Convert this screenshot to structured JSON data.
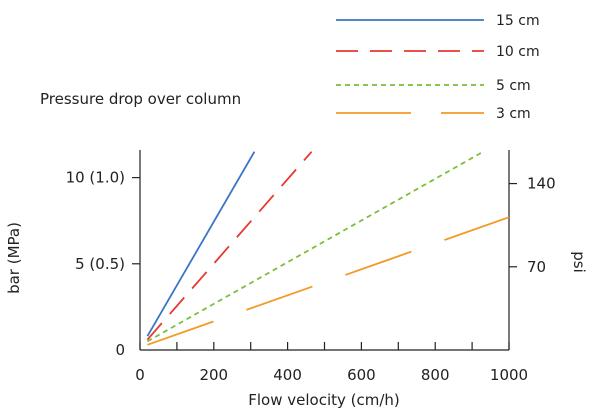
{
  "chart_data": {
    "type": "line",
    "subtitle": "Pressure drop over column",
    "xlabel": "Flow velocity (cm/h)",
    "ylabel_left": "bar (MPa)",
    "ylabel_right": "psi",
    "xlim": [
      0,
      1000
    ],
    "ylim_left_bar": [
      0,
      11.5
    ],
    "x_ticks": [
      0,
      200,
      400,
      600,
      800,
      1000
    ],
    "y_left_ticks": [
      {
        "value": 0,
        "label": "0"
      },
      {
        "value": 5,
        "label": "5 (0.5)"
      },
      {
        "value": 10,
        "label": "10 (1.0)"
      }
    ],
    "y_right_ticks": [
      {
        "psi": 70,
        "label": "70"
      },
      {
        "psi": 140,
        "label": "140"
      }
    ],
    "grid": false,
    "legend_position": "top-right",
    "series": [
      {
        "name": "15 cm",
        "color": "#3a76c4",
        "dash": "solid",
        "x": [
          20,
          310
        ],
        "y": [
          0.8,
          11.5
        ]
      },
      {
        "name": "10 cm",
        "color": "#e8392e",
        "dash": "long-dash",
        "x": [
          20,
          465
        ],
        "y": [
          0.6,
          11.5
        ]
      },
      {
        "name": "5 cm",
        "color": "#7bbf3a",
        "dash": "dotted",
        "x": [
          20,
          930
        ],
        "y": [
          0.5,
          11.5
        ]
      },
      {
        "name": "3 cm",
        "color": "#f39a26",
        "dash": "long-gap",
        "x": [
          20,
          1000
        ],
        "y": [
          0.3,
          7.7
        ]
      }
    ]
  }
}
